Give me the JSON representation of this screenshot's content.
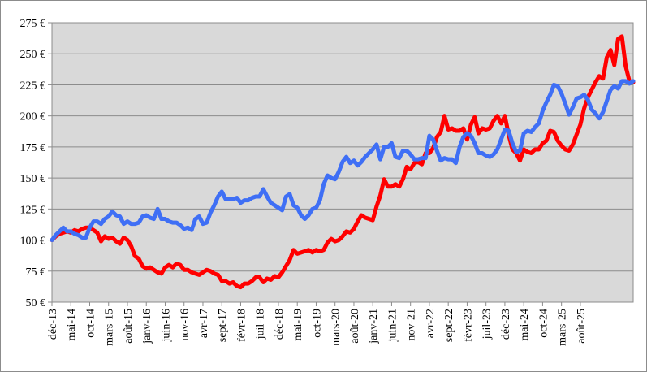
{
  "chart_data": {
    "type": "line",
    "title": "",
    "xlabel": "",
    "ylabel": "",
    "currency_suffix": " €",
    "ylim": [
      50,
      275
    ],
    "y_ticks": [
      50,
      75,
      100,
      125,
      150,
      175,
      200,
      225,
      250,
      275
    ],
    "grid": "horizontal",
    "legend": "none",
    "x_start": "déc-13",
    "x_end": "déc-25",
    "x_tick_labels": [
      "déc-13",
      "mai-14",
      "oct-14",
      "mars-15",
      "août-15",
      "janv-16",
      "juin-16",
      "nov-16",
      "avr-17",
      "sept-17",
      "févr-18",
      "juil-18",
      "déc-18",
      "mai-19",
      "oct-19",
      "mars-20",
      "août-20",
      "janv-21",
      "juin-21",
      "nov-21",
      "avr-22",
      "sept-22",
      "févr-23",
      "juil-23",
      "déc-23",
      "mai-24",
      "oct-24",
      "mars-25",
      "août-25"
    ],
    "colors": {
      "plot_bg": "#d9d9d9",
      "grid": "#8c8c8c",
      "series_red": "#ff0000",
      "series_blue": "#3f6ff5"
    },
    "series": [
      {
        "color": "#ff0000",
        "values": [
          100,
          103,
          105,
          106,
          107,
          106,
          108,
          107,
          109,
          110,
          110,
          108,
          106,
          99,
          103,
          101,
          102,
          99,
          97,
          102,
          100,
          95,
          87,
          85,
          79,
          77,
          78,
          76,
          74,
          73,
          78,
          80,
          78,
          81,
          80,
          76,
          76,
          74,
          73,
          72,
          74,
          76,
          75,
          73,
          72,
          67,
          67,
          65,
          66,
          63,
          62,
          65,
          65,
          67,
          70,
          70,
          66,
          69,
          68,
          71,
          70,
          74,
          79,
          84,
          92,
          89,
          90,
          91,
          92,
          90,
          92,
          91,
          92,
          98,
          101,
          99,
          100,
          103,
          107,
          106,
          109,
          115,
          120,
          118,
          117,
          116,
          127,
          136,
          149,
          143,
          143,
          145,
          143,
          149,
          159,
          157,
          162,
          163,
          161,
          170,
          170,
          174,
          183,
          187,
          200,
          189,
          190,
          188,
          188,
          190,
          181,
          193,
          199,
          186,
          190,
          189,
          190,
          196,
          200,
          194,
          200,
          185,
          173,
          170,
          164,
          173,
          171,
          170,
          173,
          173,
          178,
          180,
          188,
          187,
          180,
          176,
          173,
          172,
          177,
          185,
          193,
          206,
          215,
          221,
          227,
          232,
          230,
          247,
          253,
          241,
          262,
          264,
          240,
          228,
          227
        ]
      },
      {
        "color": "#3f6ff5",
        "values": [
          100,
          104,
          107,
          110,
          107,
          107,
          105,
          104,
          102,
          102,
          110,
          115,
          115,
          113,
          117,
          119,
          123,
          120,
          119,
          113,
          115,
          113,
          113,
          114,
          119,
          120,
          118,
          117,
          125,
          117,
          117,
          115,
          114,
          114,
          112,
          109,
          110,
          108,
          117,
          119,
          113,
          114,
          122,
          128,
          135,
          139,
          133,
          133,
          133,
          134,
          130,
          132,
          132,
          134,
          135,
          135,
          141,
          135,
          130,
          128,
          126,
          124,
          135,
          137,
          128,
          126,
          120,
          117,
          120,
          125,
          126,
          132,
          145,
          152,
          150,
          149,
          155,
          163,
          167,
          162,
          164,
          160,
          163,
          167,
          170,
          173,
          177,
          165,
          175,
          175,
          178,
          167,
          166,
          172,
          172,
          169,
          165,
          165,
          166,
          166,
          184,
          181,
          172,
          164,
          166,
          165,
          165,
          162,
          175,
          183,
          186,
          184,
          178,
          170,
          170,
          168,
          167,
          169,
          173,
          181,
          189,
          188,
          178,
          171,
          172,
          186,
          188,
          187,
          191,
          194,
          204,
          211,
          217,
          225,
          224,
          218,
          210,
          201,
          207,
          214,
          215,
          217,
          213,
          205,
          202,
          198,
          203,
          212,
          221,
          224,
          222,
          228,
          228,
          226,
          228
        ]
      }
    ]
  }
}
